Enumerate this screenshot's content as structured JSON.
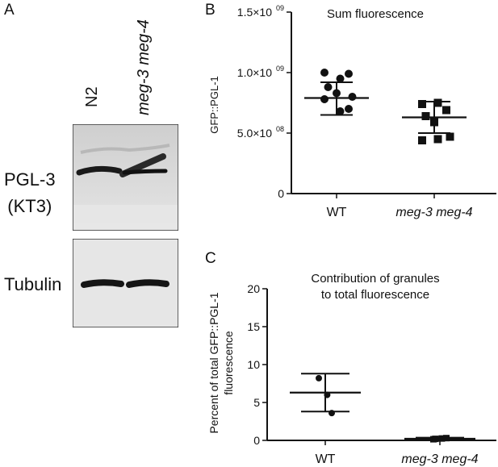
{
  "panels": {
    "a": {
      "letter": "A",
      "lanes": [
        "N2",
        "meg-3 meg-4"
      ],
      "blots": [
        {
          "label_lines": [
            "PGL-3",
            "(KT3)"
          ]
        },
        {
          "label_lines": [
            "Tubulin"
          ]
        }
      ]
    },
    "b": {
      "letter": "B",
      "chart_data": {
        "type": "scatter",
        "title": "Sum fluorescence",
        "ylabel": "GFP::PGL-1",
        "xlabel": "",
        "categories": [
          "WT",
          "meg-3 meg-4"
        ],
        "yticks": [
          {
            "value": 0,
            "label": "0"
          },
          {
            "value": 500000000,
            "label": "5.0×10",
            "exp": "08"
          },
          {
            "value": 1000000000,
            "label": "1.0×10",
            "exp": "09"
          },
          {
            "value": 1500000000,
            "label": "1.5×10",
            "exp": "09"
          }
        ],
        "ylim": [
          0,
          1500000000
        ],
        "series": [
          {
            "category": "WT",
            "marker": "circle",
            "points": [
              1000000000,
              950000000,
              990000000,
              880000000,
              830000000,
              800000000,
              780000000,
              680000000,
              700000000
            ],
            "mean": 790000000,
            "sd_low": 650000000,
            "sd_high": 920000000
          },
          {
            "category": "meg-3 meg-4",
            "marker": "square",
            "points": [
              740000000,
              750000000,
              690000000,
              640000000,
              590000000,
              470000000,
              440000000,
              450000000
            ],
            "mean": 630000000,
            "sd_low": 500000000,
            "sd_high": 760000000
          }
        ]
      }
    },
    "c": {
      "letter": "C",
      "chart_data": {
        "type": "scatter",
        "title_lines": [
          "Contribution of granules",
          "to total fluorescence"
        ],
        "ylabel_lines": [
          "Percent of total GFP::PGL-1",
          "fluorescence"
        ],
        "xlabel": "",
        "categories": [
          "WT",
          "meg-3 meg-4"
        ],
        "yticks": [
          {
            "value": 0,
            "label": "0"
          },
          {
            "value": 5,
            "label": "5"
          },
          {
            "value": 10,
            "label": "10"
          },
          {
            "value": 15,
            "label": "15"
          },
          {
            "value": 20,
            "label": "20"
          }
        ],
        "ylim": [
          0,
          20
        ],
        "series": [
          {
            "category": "WT",
            "marker": "circle",
            "points": [
              8.2,
              6.0,
              3.6
            ],
            "mean": 6.3,
            "sd_low": 3.8,
            "sd_high": 8.8
          },
          {
            "category": "meg-3 meg-4",
            "marker": "square",
            "points": [
              0.15,
              0.25,
              0.3,
              0.2
            ],
            "mean": 0.22,
            "sd_low": 0.08,
            "sd_high": 0.36
          }
        ]
      }
    }
  }
}
